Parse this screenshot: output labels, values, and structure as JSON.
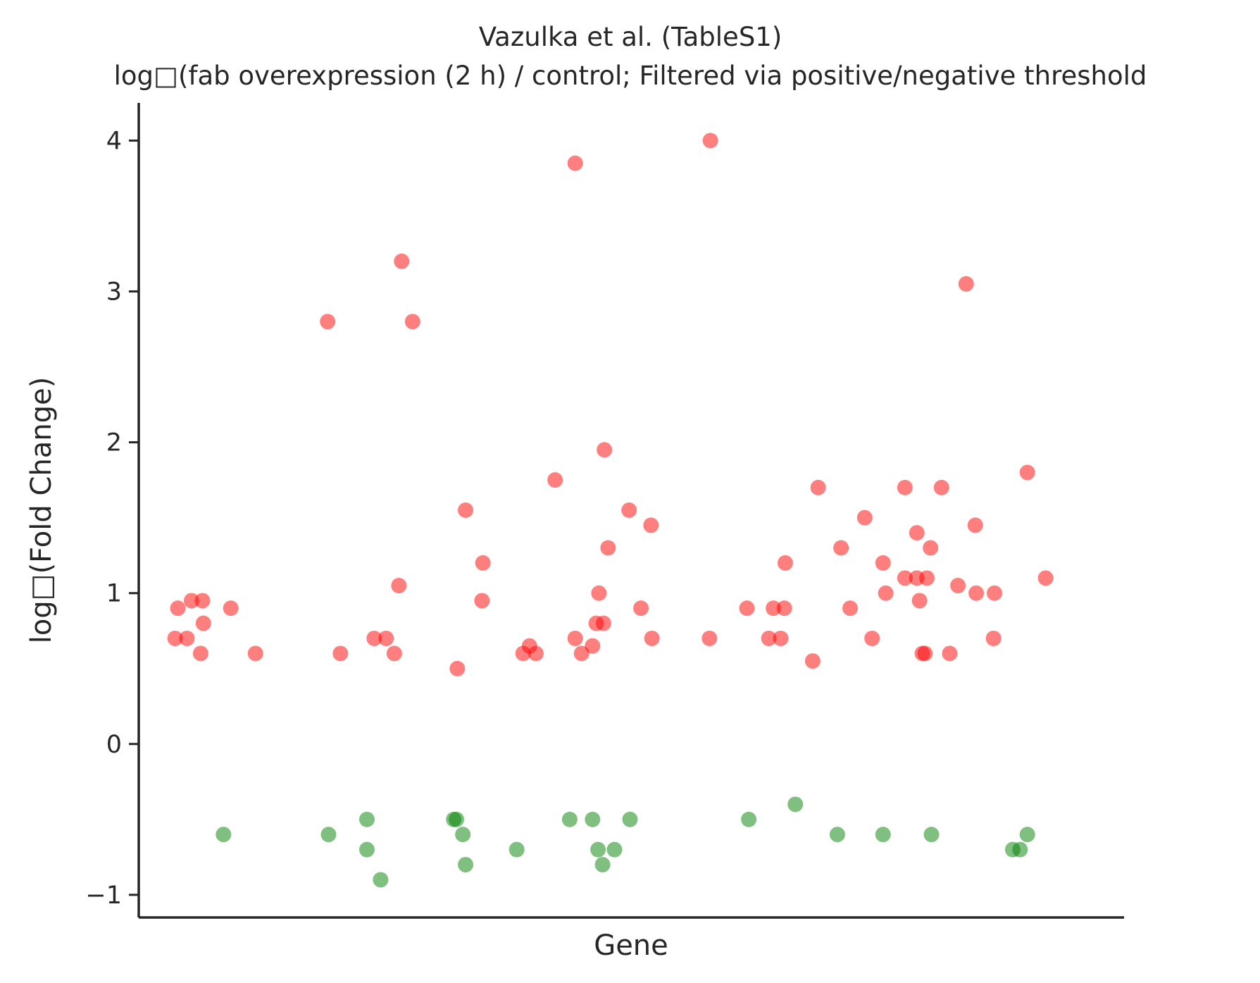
{
  "chart_data": {
    "type": "scatter",
    "title": "Vazulka et al. (TableS1)",
    "subtitle": "log□(fab overexpression (2 h) / control; Filtered via positive/negative threshold",
    "xlabel": "Gene",
    "ylabel": "log□(Fold Change)",
    "ylim": [
      -1.15,
      4.25
    ],
    "yticks": [
      -1,
      0,
      1,
      2,
      3,
      4
    ],
    "ytick_labels": [
      "−1",
      "0",
      "1",
      "2",
      "3",
      "4"
    ],
    "grid": false,
    "legend": "none",
    "colors": {
      "up": "#ff0000",
      "down": "#008000"
    },
    "series": [
      {
        "group": "up",
        "points": [
          {
            "x": 0.002,
            "y": 0.7
          },
          {
            "x": 0.005,
            "y": 0.9
          },
          {
            "x": 0.015,
            "y": 0.7
          },
          {
            "x": 0.02,
            "y": 0.95
          },
          {
            "x": 0.032,
            "y": 0.95
          },
          {
            "x": 0.03,
            "y": 0.6
          },
          {
            "x": 0.033,
            "y": 0.8
          },
          {
            "x": 0.063,
            "y": 0.9
          },
          {
            "x": 0.09,
            "y": 0.6
          },
          {
            "x": 0.169,
            "y": 2.8
          },
          {
            "x": 0.183,
            "y": 0.6
          },
          {
            "x": 0.22,
            "y": 0.7
          },
          {
            "x": 0.233,
            "y": 0.7
          },
          {
            "x": 0.242,
            "y": 0.6
          },
          {
            "x": 0.247,
            "y": 1.05
          },
          {
            "x": 0.25,
            "y": 3.2
          },
          {
            "x": 0.262,
            "y": 2.8
          },
          {
            "x": 0.311,
            "y": 0.5
          },
          {
            "x": 0.32,
            "y": 1.55
          },
          {
            "x": 0.339,
            "y": 1.2
          },
          {
            "x": 0.338,
            "y": 0.95
          },
          {
            "x": 0.383,
            "y": 0.6
          },
          {
            "x": 0.39,
            "y": 0.65
          },
          {
            "x": 0.397,
            "y": 0.6
          },
          {
            "x": 0.418,
            "y": 1.75
          },
          {
            "x": 0.44,
            "y": 0.7
          },
          {
            "x": 0.44,
            "y": 3.85
          },
          {
            "x": 0.447,
            "y": 0.6
          },
          {
            "x": 0.459,
            "y": 0.65
          },
          {
            "x": 0.463,
            "y": 0.8
          },
          {
            "x": 0.466,
            "y": 1.0
          },
          {
            "x": 0.471,
            "y": 0.8
          },
          {
            "x": 0.472,
            "y": 1.95
          },
          {
            "x": 0.476,
            "y": 1.3
          },
          {
            "x": 0.499,
            "y": 1.55
          },
          {
            "x": 0.512,
            "y": 0.9
          },
          {
            "x": 0.523,
            "y": 1.45
          },
          {
            "x": 0.524,
            "y": 0.7
          },
          {
            "x": 0.588,
            "y": 4.0
          },
          {
            "x": 0.587,
            "y": 0.7
          },
          {
            "x": 0.628,
            "y": 0.9
          },
          {
            "x": 0.652,
            "y": 0.7
          },
          {
            "x": 0.657,
            "y": 0.9
          },
          {
            "x": 0.665,
            "y": 0.7
          },
          {
            "x": 0.67,
            "y": 1.2
          },
          {
            "x": 0.669,
            "y": 0.9
          },
          {
            "x": 0.7,
            "y": 0.55
          },
          {
            "x": 0.706,
            "y": 1.7
          },
          {
            "x": 0.731,
            "y": 1.3
          },
          {
            "x": 0.741,
            "y": 0.9
          },
          {
            "x": 0.757,
            "y": 1.5
          },
          {
            "x": 0.765,
            "y": 0.7
          },
          {
            "x": 0.777,
            "y": 1.2
          },
          {
            "x": 0.78,
            "y": 1.0
          },
          {
            "x": 0.801,
            "y": 1.1
          },
          {
            "x": 0.801,
            "y": 1.7
          },
          {
            "x": 0.814,
            "y": 1.1
          },
          {
            "x": 0.814,
            "y": 1.4
          },
          {
            "x": 0.817,
            "y": 0.95
          },
          {
            "x": 0.82,
            "y": 0.6
          },
          {
            "x": 0.823,
            "y": 0.6
          },
          {
            "x": 0.825,
            "y": 1.1
          },
          {
            "x": 0.829,
            "y": 1.3
          },
          {
            "x": 0.841,
            "y": 1.7
          },
          {
            "x": 0.85,
            "y": 0.6
          },
          {
            "x": 0.859,
            "y": 1.05
          },
          {
            "x": 0.868,
            "y": 3.05
          },
          {
            "x": 0.878,
            "y": 1.45
          },
          {
            "x": 0.879,
            "y": 1.0
          },
          {
            "x": 0.898,
            "y": 0.7
          },
          {
            "x": 0.899,
            "y": 1.0
          },
          {
            "x": 0.935,
            "y": 1.8
          },
          {
            "x": 0.955,
            "y": 1.1
          }
        ]
      },
      {
        "group": "down",
        "points": [
          {
            "x": 0.055,
            "y": -0.6
          },
          {
            "x": 0.17,
            "y": -0.6
          },
          {
            "x": 0.212,
            "y": -0.5
          },
          {
            "x": 0.212,
            "y": -0.7
          },
          {
            "x": 0.227,
            "y": -0.9
          },
          {
            "x": 0.307,
            "y": -0.5
          },
          {
            "x": 0.31,
            "y": -0.5
          },
          {
            "x": 0.317,
            "y": -0.6
          },
          {
            "x": 0.32,
            "y": -0.8
          },
          {
            "x": 0.376,
            "y": -0.7
          },
          {
            "x": 0.434,
            "y": -0.5
          },
          {
            "x": 0.459,
            "y": -0.5
          },
          {
            "x": 0.465,
            "y": -0.7
          },
          {
            "x": 0.47,
            "y": -0.8
          },
          {
            "x": 0.483,
            "y": -0.7
          },
          {
            "x": 0.5,
            "y": -0.5
          },
          {
            "x": 0.63,
            "y": -0.5
          },
          {
            "x": 0.681,
            "y": -0.4
          },
          {
            "x": 0.727,
            "y": -0.6
          },
          {
            "x": 0.777,
            "y": -0.6
          },
          {
            "x": 0.83,
            "y": -0.6
          },
          {
            "x": 0.919,
            "y": -0.7
          },
          {
            "x": 0.927,
            "y": -0.7
          },
          {
            "x": 0.935,
            "y": -0.6
          }
        ]
      }
    ]
  }
}
